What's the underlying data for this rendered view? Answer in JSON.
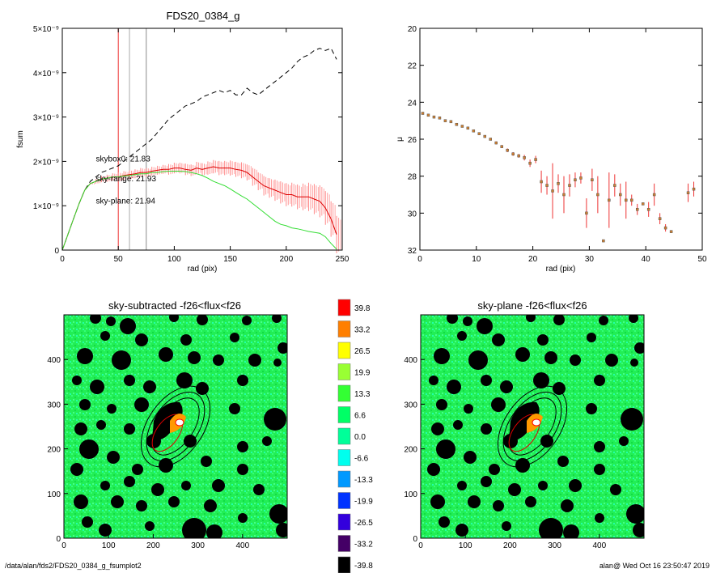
{
  "footer": {
    "path": "/data/alan/fds2/FDS20_0384_g_fsumplot2",
    "stamp": "alan@  Wed Oct 16 23:50:47 2019"
  },
  "chart_data": [
    {
      "type": "line",
      "title": "FDS20_0384_g",
      "xlabel": "rad (pix)",
      "ylabel": "fsum",
      "xlim": [
        0,
        250
      ],
      "ylim": [
        0,
        5e-09
      ],
      "x_ticks": [
        "0",
        "50",
        "100",
        "150",
        "200",
        "250"
      ],
      "y_ticks": [
        "0",
        "1×10⁻⁹",
        "2×10⁻⁹",
        "3×10⁻⁹",
        "4×10⁻⁹",
        "5×10⁻⁹"
      ],
      "vlines": [
        {
          "x": 50,
          "color": "#e33"
        },
        {
          "x": 60,
          "color": "#aaa"
        },
        {
          "x": 75,
          "color": "#888"
        }
      ],
      "annotations": [
        {
          "text": "skybox0: 21.83",
          "color": "#000000",
          "x": 30,
          "y": 2e-09
        },
        {
          "text": "sky-range: 21.93",
          "color": "#ee2222",
          "x": 30,
          "y": 1.55e-09
        },
        {
          "text": "sky-plane: 21.94",
          "color": "#22cc22",
          "x": 30,
          "y": 1.05e-09
        }
      ],
      "series": [
        {
          "style": "dashed",
          "color": "#000000",
          "x": [
            0,
            5,
            10,
            15,
            20,
            25,
            30,
            35,
            40,
            45,
            50,
            55,
            60,
            65,
            70,
            75,
            80,
            85,
            90,
            95,
            100,
            105,
            110,
            115,
            120,
            125,
            130,
            135,
            140,
            145,
            150,
            155,
            160,
            165,
            170,
            175,
            180,
            185,
            190,
            195,
            200,
            205,
            210,
            215,
            220,
            225,
            230,
            235,
            240,
            245
          ],
          "y": [
            0,
            3.5e-10,
            7e-10,
            1.05e-09,
            1.35e-09,
            1.55e-09,
            1.65e-09,
            1.75e-09,
            1.8e-09,
            1.85e-09,
            1.9e-09,
            2e-09,
            2.1e-09,
            2.2e-09,
            2.3e-09,
            2.4e-09,
            2.5e-09,
            2.65e-09,
            2.8e-09,
            2.95e-09,
            3.05e-09,
            3.15e-09,
            3.25e-09,
            3.3e-09,
            3.35e-09,
            3.45e-09,
            3.5e-09,
            3.55e-09,
            3.6e-09,
            3.55e-09,
            3.6e-09,
            3.5e-09,
            3.5e-09,
            3.65e-09,
            3.55e-09,
            3.5e-09,
            3.6e-09,
            3.7e-09,
            3.8e-09,
            3.9e-09,
            4e-09,
            4.1e-09,
            4.25e-09,
            4.35e-09,
            4.4e-09,
            4.5e-09,
            4.55e-09,
            4.5e-09,
            4.55e-09,
            4.3e-09
          ]
        },
        {
          "style": "solid",
          "color": "#dd0000",
          "errorbars": true,
          "x": [
            0,
            5,
            10,
            15,
            20,
            25,
            30,
            35,
            40,
            45,
            50,
            55,
            60,
            65,
            70,
            75,
            80,
            85,
            90,
            95,
            100,
            105,
            110,
            115,
            120,
            125,
            130,
            135,
            140,
            145,
            150,
            155,
            160,
            165,
            170,
            175,
            180,
            185,
            190,
            195,
            200,
            205,
            210,
            215,
            220,
            225,
            230,
            235,
            240,
            245
          ],
          "y": [
            0,
            3.5e-10,
            7e-10,
            1.05e-09,
            1.35e-09,
            1.5e-09,
            1.55e-09,
            1.6e-09,
            1.62e-09,
            1.65e-09,
            1.65e-09,
            1.68e-09,
            1.7e-09,
            1.72e-09,
            1.75e-09,
            1.75e-09,
            1.78e-09,
            1.8e-09,
            1.82e-09,
            1.82e-09,
            1.85e-09,
            1.85e-09,
            1.82e-09,
            1.8e-09,
            1.85e-09,
            1.82e-09,
            1.85e-09,
            1.88e-09,
            1.85e-09,
            1.85e-09,
            1.85e-09,
            1.82e-09,
            1.8e-09,
            1.75e-09,
            1.65e-09,
            1.55e-09,
            1.45e-09,
            1.4e-09,
            1.35e-09,
            1.3e-09,
            1.25e-09,
            1.25e-09,
            1.2e-09,
            1.2e-09,
            1.2e-09,
            1.15e-09,
            1.1e-09,
            9.5e-10,
            7e-10,
            3.5e-10
          ],
          "err": [
            0,
            0,
            0,
            0,
            0,
            2e-11,
            5e-11,
            7e-11,
            8e-11,
            8e-11,
            1e-10,
            1e-10,
            1e-10,
            1e-10,
            1e-10,
            1e-10,
            1e-10,
            1e-10,
            1e-10,
            1.2e-10,
            1.2e-10,
            1.2e-10,
            1.3e-10,
            1.3e-10,
            1.4e-10,
            1.4e-10,
            1.5e-10,
            1.5e-10,
            1.6e-10,
            1.6e-10,
            1.7e-10,
            1.7e-10,
            1.8e-10,
            1.8e-10,
            2e-10,
            2e-10,
            2.2e-10,
            2.2e-10,
            2.4e-10,
            2.5e-10,
            2.6e-10,
            2.7e-10,
            2.8e-10,
            3e-10,
            3.2e-10,
            3.4e-10,
            3.6e-10,
            3.8e-10,
            4e-10,
            4.2e-10
          ]
        },
        {
          "style": "solid",
          "color": "#33dd33",
          "x": [
            0,
            5,
            10,
            15,
            20,
            25,
            30,
            35,
            40,
            45,
            50,
            55,
            60,
            65,
            70,
            75,
            80,
            85,
            90,
            95,
            100,
            105,
            110,
            115,
            120,
            125,
            130,
            135,
            140,
            145,
            150,
            155,
            160,
            165,
            170,
            175,
            180,
            185,
            190,
            195,
            200,
            205,
            210,
            215,
            220,
            225,
            230,
            235,
            240,
            245
          ],
          "y": [
            0,
            3.5e-10,
            7e-10,
            1.05e-09,
            1.35e-09,
            1.5e-09,
            1.55e-09,
            1.6e-09,
            1.62e-09,
            1.65e-09,
            1.65e-09,
            1.67e-09,
            1.68e-09,
            1.7e-09,
            1.72e-09,
            1.72e-09,
            1.75e-09,
            1.75e-09,
            1.77e-09,
            1.78e-09,
            1.78e-09,
            1.78e-09,
            1.77e-09,
            1.75e-09,
            1.72e-09,
            1.68e-09,
            1.62e-09,
            1.55e-09,
            1.5e-09,
            1.45e-09,
            1.38e-09,
            1.3e-09,
            1.22e-09,
            1.15e-09,
            1.05e-09,
            9.5e-10,
            8.5e-10,
            7.5e-10,
            6.5e-10,
            5.8e-10,
            5.5e-10,
            5e-10,
            4.8e-10,
            4.5e-10,
            4.2e-10,
            4e-10,
            3.8e-10,
            3e-10,
            1.5e-10,
            2e-11
          ]
        }
      ]
    },
    {
      "type": "scatter",
      "xlabel": "rad (pix)",
      "ylabel": "μ",
      "xlim": [
        0,
        50
      ],
      "ylim": [
        32,
        20
      ],
      "x_ticks": [
        "0",
        "10",
        "20",
        "30",
        "40",
        "50"
      ],
      "y_ticks": [
        "20",
        "22",
        "24",
        "26",
        "28",
        "30",
        "32"
      ],
      "points": [
        {
          "x": 0.5,
          "y": 24.6,
          "err": 0.05
        },
        {
          "x": 1.5,
          "y": 24.7,
          "err": 0.05
        },
        {
          "x": 2.5,
          "y": 24.8,
          "err": 0.05
        },
        {
          "x": 3.5,
          "y": 24.85,
          "err": 0.05
        },
        {
          "x": 4.5,
          "y": 25.0,
          "err": 0.05
        },
        {
          "x": 5.5,
          "y": 25.05,
          "err": 0.05
        },
        {
          "x": 6.5,
          "y": 25.2,
          "err": 0.05
        },
        {
          "x": 7.5,
          "y": 25.3,
          "err": 0.05
        },
        {
          "x": 8.5,
          "y": 25.4,
          "err": 0.05
        },
        {
          "x": 9.5,
          "y": 25.55,
          "err": 0.05
        },
        {
          "x": 10.5,
          "y": 25.7,
          "err": 0.05
        },
        {
          "x": 11.5,
          "y": 25.85,
          "err": 0.05
        },
        {
          "x": 12.5,
          "y": 26.0,
          "err": 0.05
        },
        {
          "x": 13.5,
          "y": 26.2,
          "err": 0.08
        },
        {
          "x": 14.5,
          "y": 26.4,
          "err": 0.08
        },
        {
          "x": 15.5,
          "y": 26.6,
          "err": 0.1
        },
        {
          "x": 16.5,
          "y": 26.8,
          "err": 0.1
        },
        {
          "x": 17.5,
          "y": 26.9,
          "err": 0.1
        },
        {
          "x": 18.5,
          "y": 27.0,
          "err": 0.15
        },
        {
          "x": 19.5,
          "y": 27.3,
          "err": 0.2
        },
        {
          "x": 20.5,
          "y": 27.1,
          "err": 0.2
        },
        {
          "x": 21.5,
          "y": 28.3,
          "err": 0.6
        },
        {
          "x": 22.5,
          "y": 28.5,
          "err": 0.5
        },
        {
          "x": 23.5,
          "y": 28.8,
          "err": 1.5
        },
        {
          "x": 24.5,
          "y": 28.4,
          "err": 0.5
        },
        {
          "x": 25.5,
          "y": 29.0,
          "err": 1.0
        },
        {
          "x": 26.5,
          "y": 28.5,
          "err": 0.6
        },
        {
          "x": 27.5,
          "y": 28.2,
          "err": 0.4
        },
        {
          "x": 28.5,
          "y": 28.1,
          "err": 0.3
        },
        {
          "x": 29.5,
          "y": 30.0,
          "err": 0.8
        },
        {
          "x": 30.5,
          "y": 28.2,
          "err": 0.6
        },
        {
          "x": 31.5,
          "y": 29.0,
          "err": 1.0
        },
        {
          "x": 32.5,
          "y": 31.5,
          "err": 0
        },
        {
          "x": 33.5,
          "y": 29.3,
          "err": 1.5
        },
        {
          "x": 34.5,
          "y": 28.5,
          "err": 0.6
        },
        {
          "x": 35.5,
          "y": 29.0,
          "err": 0.6
        },
        {
          "x": 36.5,
          "y": 29.3,
          "err": 1.0
        },
        {
          "x": 37.5,
          "y": 29.3,
          "err": 0.3
        },
        {
          "x": 38.5,
          "y": 29.8,
          "err": 0.3
        },
        {
          "x": 39.5,
          "y": 29.5,
          "err": 0
        },
        {
          "x": 40.5,
          "y": 29.8,
          "err": 0.4
        },
        {
          "x": 41.5,
          "y": 29.0,
          "err": 0.6
        },
        {
          "x": 42.5,
          "y": 30.3,
          "err": 0.3
        },
        {
          "x": 43.5,
          "y": 30.8,
          "err": 0.2
        },
        {
          "x": 44.5,
          "y": 31.0,
          "err": 0
        },
        {
          "x": 47.5,
          "y": 28.9,
          "err": 0.5
        },
        {
          "x": 48.5,
          "y": 28.7,
          "err": 0.4
        }
      ]
    },
    {
      "type": "heatmap",
      "title": "sky-subtracted -f26<flux<f26",
      "xlim": [
        0,
        500
      ],
      "ylim": [
        0,
        500
      ],
      "x_ticks": [
        "0",
        "100",
        "200",
        "300",
        "400"
      ],
      "y_ticks": [
        "0",
        "100",
        "200",
        "300",
        "400"
      ]
    },
    {
      "type": "heatmap",
      "title": "sky-plane -f26<flux<f26",
      "xlim": [
        0,
        500
      ],
      "ylim": [
        0,
        500
      ],
      "x_ticks": [
        "0",
        "100",
        "200",
        "300",
        "400"
      ],
      "y_ticks": [
        "0",
        "100",
        "200",
        "300",
        "400"
      ]
    }
  ],
  "colorbar": {
    "labels": [
      "39.8",
      "33.2",
      "26.5",
      "19.9",
      "13.3",
      "6.6",
      "0.0",
      "-6.6",
      "-13.3",
      "-19.9",
      "-26.5",
      "-33.2",
      "-39.8"
    ],
    "colors": [
      "#ff0000",
      "#ff7f00",
      "#ffff00",
      "#99ff33",
      "#33ff33",
      "#00ff66",
      "#00ff99",
      "#00ffee",
      "#0099ff",
      "#0033ff",
      "#3300dd",
      "#440066",
      "#000000"
    ]
  }
}
